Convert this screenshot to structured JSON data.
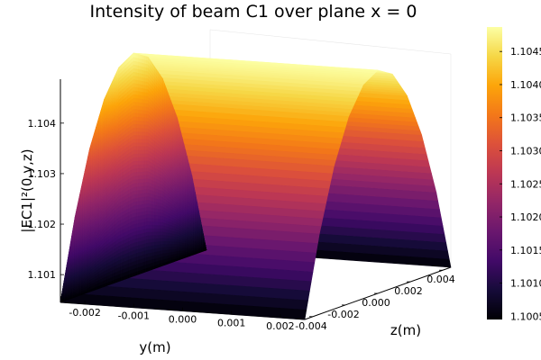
{
  "chart_data": {
    "type": "surface",
    "title": "Intensity  of beam C1 over plane x = 0",
    "xlabel": "y(m)",
    "ylabel": "z(m)",
    "zlabel": "|EC1|²(0,y,z)",
    "y_ticks": [
      "-0.002",
      "-0.001",
      "0.000",
      "0.001",
      "0.002"
    ],
    "y_tick_values": [
      -0.002,
      -0.001,
      0.0,
      0.001,
      0.002
    ],
    "z_ticks": [
      "-0.004",
      "-0.002",
      "0.000",
      "0.002",
      "0.004"
    ],
    "z_tick_values": [
      -0.004,
      -0.002,
      0.0,
      0.002,
      0.004
    ],
    "intensity_ticks": [
      "1.101",
      "1.102",
      "1.103",
      "1.104"
    ],
    "intensity_tick_values": [
      1.101,
      1.102,
      1.103,
      1.104
    ],
    "y_range": [
      -0.0025,
      0.0025
    ],
    "z_range": [
      -0.0045,
      0.0045
    ],
    "intensity_range": [
      1.10045,
      1.10487
    ],
    "colorbar": {
      "colormap": "inferno",
      "ticks": [
        "1.1005",
        "1.1010",
        "1.1015",
        "1.1020",
        "1.1025",
        "1.1030",
        "1.1035",
        "1.1040",
        "1.1045"
      ],
      "tick_values": [
        1.1005,
        1.101,
        1.1015,
        1.102,
        1.1025,
        1.103,
        1.1035,
        1.104,
        1.1045
      ],
      "range": [
        1.10045,
        1.10487
      ]
    },
    "surface_profile": {
      "description_axis": "z",
      "z": [
        -0.0045,
        -0.0036,
        -0.0027,
        -0.0018,
        -0.0009,
        0.0,
        0.0009,
        0.0018,
        0.0027,
        0.0036,
        0.0045
      ],
      "intensity": [
        1.10045,
        1.10204,
        1.10328,
        1.10416,
        1.10469,
        1.10487,
        1.10469,
        1.10416,
        1.10328,
        1.10204,
        1.10045
      ],
      "constant_along": "y"
    },
    "grid": true,
    "legend": "none"
  }
}
